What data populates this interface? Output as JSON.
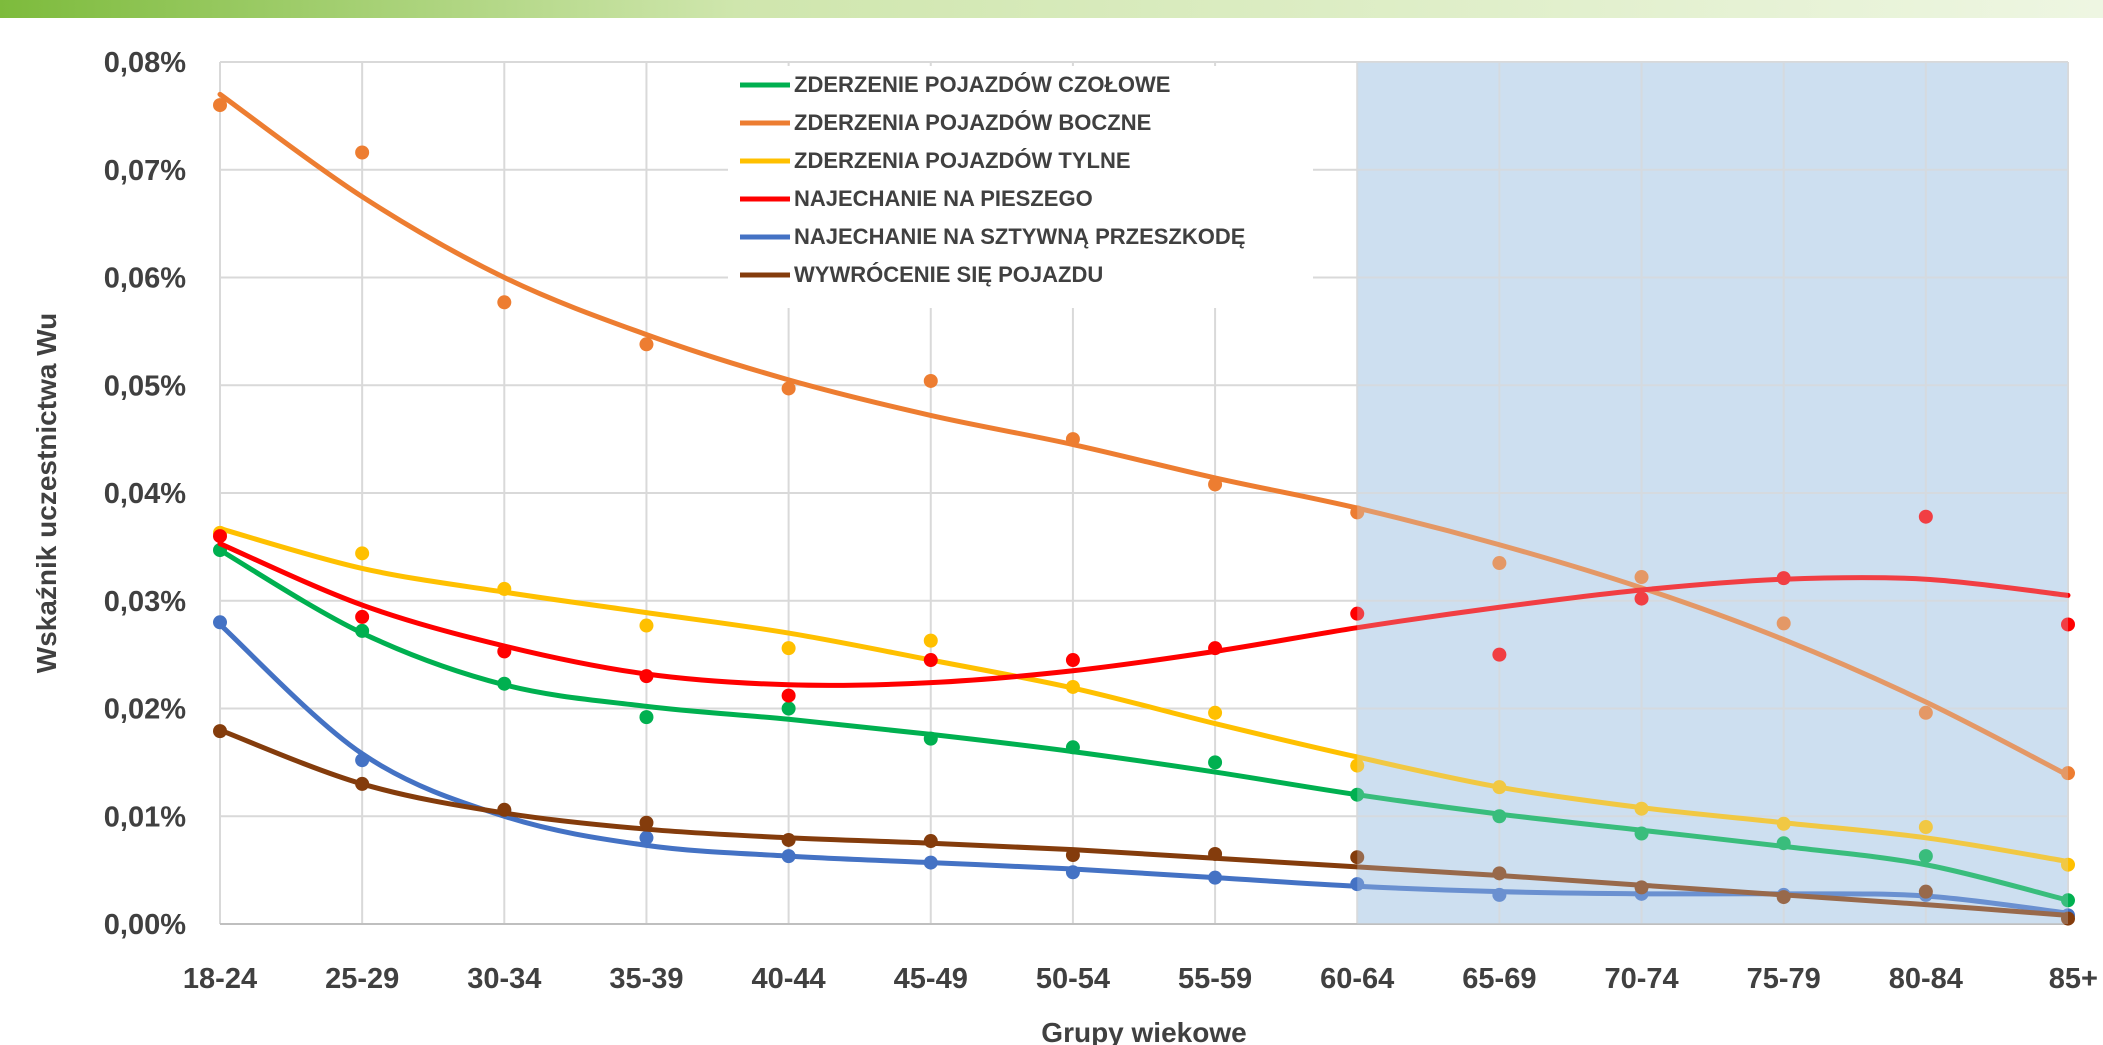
{
  "chart_data": {
    "type": "scatter",
    "categories": [
      "18-24",
      "25-29",
      "30-34",
      "35-39",
      "40-44",
      "45-49",
      "50-54",
      "55-59",
      "60-64",
      "65-69",
      "70-74",
      "75-79",
      "80-84",
      "85+"
    ],
    "ylabel": "Wskaźnik uczestnictwa Wu",
    "xlabel": "Grupy wiekowe",
    "yticks": [
      "0,00%",
      "0,01%",
      "0,02%",
      "0,03%",
      "0,04%",
      "0,05%",
      "0,06%",
      "0,07%",
      "0,08%"
    ],
    "ylim": [
      0,
      0.08
    ],
    "highlight_range": [
      "60-64",
      "85+"
    ],
    "highlight_color": "#cddff0",
    "grid": true,
    "legend_position": "top-center",
    "series": [
      {
        "name": "ZDERZENIE POJAZDÓW CZOŁOWE",
        "color": "#00b050",
        "values": [
          0.0347,
          0.0272,
          0.0223,
          0.0192,
          0.02,
          0.0172,
          0.0164,
          0.015,
          0.012,
          0.01,
          0.0084,
          0.0075,
          0.0063,
          0.0022
        ],
        "trend": [
          0.0347,
          0.027,
          0.0222,
          0.0202,
          0.019,
          0.0176,
          0.016,
          0.0141,
          0.012,
          0.0102,
          0.0087,
          0.0072,
          0.0055,
          0.0022
        ]
      },
      {
        "name": "ZDERZENIA POJAZDÓW BOCZNE",
        "color": "#ed7d31",
        "values": [
          0.076,
          0.0716,
          0.0577,
          0.0538,
          0.0497,
          0.0504,
          0.045,
          0.0408,
          0.0382,
          0.0335,
          0.0322,
          0.0279,
          0.0196,
          0.014
        ],
        "trend": [
          0.077,
          0.0675,
          0.06,
          0.0547,
          0.0505,
          0.0472,
          0.0445,
          0.0414,
          0.0386,
          0.0352,
          0.0312,
          0.0264,
          0.0206,
          0.0138
        ]
      },
      {
        "name": "ZDERZENIA POJAZDÓW TYLNE",
        "color": "#ffc000",
        "values": [
          0.0363,
          0.0344,
          0.0311,
          0.0277,
          0.0256,
          0.0263,
          0.022,
          0.0196,
          0.0147,
          0.0127,
          0.0107,
          0.0093,
          0.009,
          0.0055
        ],
        "trend": [
          0.0367,
          0.033,
          0.0308,
          0.0289,
          0.027,
          0.0245,
          0.0219,
          0.0186,
          0.0155,
          0.0127,
          0.0108,
          0.0094,
          0.008,
          0.0058
        ]
      },
      {
        "name": "NAJECHANIE NA PIESZEGO",
        "color": "#ff0000",
        "values": [
          0.036,
          0.0285,
          0.0253,
          0.023,
          0.0212,
          0.0245,
          0.0245,
          0.0256,
          0.0288,
          0.025,
          0.0302,
          0.0321,
          0.0378,
          0.0278
        ],
        "trend": [
          0.0353,
          0.0296,
          0.0258,
          0.0232,
          0.0222,
          0.0224,
          0.0235,
          0.0253,
          0.0275,
          0.0294,
          0.031,
          0.032,
          0.032,
          0.0305
        ]
      },
      {
        "name": "NAJECHANIE NA SZTYWNĄ PRZESZKODĘ",
        "color": "#4472c4",
        "values": [
          0.028,
          0.0152,
          0.0105,
          0.008,
          0.0063,
          0.0057,
          0.0048,
          0.0043,
          0.0037,
          0.0027,
          0.0028,
          0.0027,
          0.0027,
          0.0008
        ],
        "trend": [
          0.0278,
          0.0158,
          0.01,
          0.0073,
          0.0063,
          0.0057,
          0.0051,
          0.0043,
          0.0035,
          0.003,
          0.0028,
          0.0028,
          0.0026,
          0.001
        ]
      },
      {
        "name": "WYWRÓCENIE SIĘ POJAZDU",
        "color": "#843c0c",
        "values": [
          0.0179,
          0.013,
          0.0106,
          0.0094,
          0.0078,
          0.0077,
          0.0064,
          0.0065,
          0.0062,
          0.0047,
          0.0034,
          0.0025,
          0.003,
          0.0005
        ],
        "trend": [
          0.018,
          0.013,
          0.0103,
          0.0088,
          0.008,
          0.0075,
          0.0069,
          0.0061,
          0.0053,
          0.0045,
          0.0036,
          0.0027,
          0.0018,
          0.0008
        ]
      }
    ]
  }
}
